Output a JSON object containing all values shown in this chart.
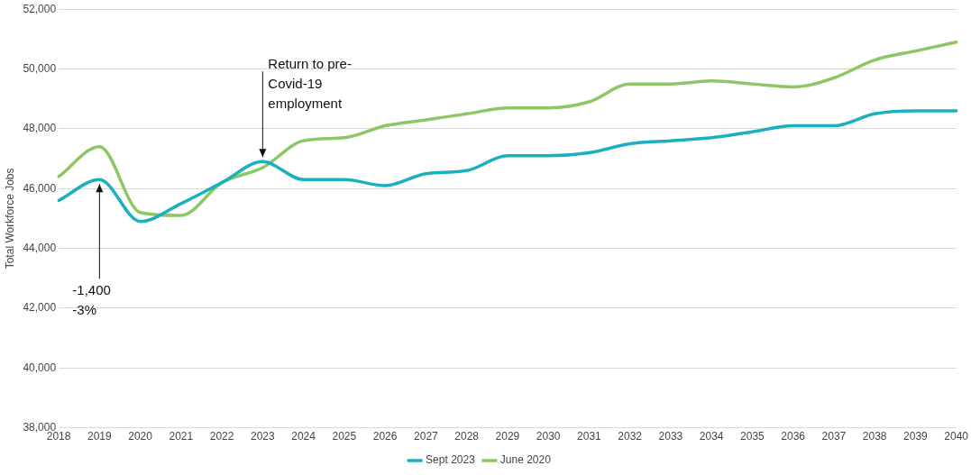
{
  "chart_data": {
    "type": "line",
    "ylabel": "Total Workforce Jobs",
    "categories": [
      "2018",
      "2019",
      "2020",
      "2021",
      "2022",
      "2023",
      "2024",
      "2025",
      "2026",
      "2027",
      "2028",
      "2029",
      "2030",
      "2031",
      "2032",
      "2033",
      "2034",
      "2035",
      "2036",
      "2037",
      "2038",
      "2039",
      "2040"
    ],
    "series": [
      {
        "name": "Sept 2023",
        "color": "#1ab0bd",
        "values": [
          45600,
          46300,
          44900,
          45500,
          46200,
          46900,
          46300,
          46300,
          46100,
          46500,
          46600,
          47100,
          47100,
          47200,
          47500,
          47600,
          47700,
          47900,
          48100,
          48100,
          48500,
          48600,
          48600
        ]
      },
      {
        "name": "June 2020",
        "color": "#8cc665",
        "values": [
          46400,
          47400,
          45200,
          45100,
          46200,
          46700,
          47600,
          47700,
          48100,
          48300,
          48500,
          48700,
          48700,
          48900,
          49500,
          49500,
          49600,
          49500,
          49400,
          49700,
          50300,
          50600,
          50900
        ]
      }
    ],
    "ylim": [
      38000,
      52000
    ],
    "yticks": [
      {
        "value": 38000,
        "label": "38,000"
      },
      {
        "value": 40000,
        "label": "40,000"
      },
      {
        "value": 42000,
        "label": "42,000"
      },
      {
        "value": 44000,
        "label": "44,000"
      },
      {
        "value": 46000,
        "label": "46,000"
      },
      {
        "value": 48000,
        "label": "48,000"
      },
      {
        "value": 50000,
        "label": "50,000"
      },
      {
        "value": 52000,
        "label": "52,000"
      }
    ],
    "grid": "y",
    "legend": "bottom",
    "marker": "none",
    "line_style": "solid",
    "annotations": [
      {
        "text": "Return to pre-\nCovid-19\nemployment",
        "x": "2023",
        "y": 46900
      },
      {
        "text": "-1,400\n-3%",
        "x": "2019",
        "y": 46300
      }
    ]
  }
}
